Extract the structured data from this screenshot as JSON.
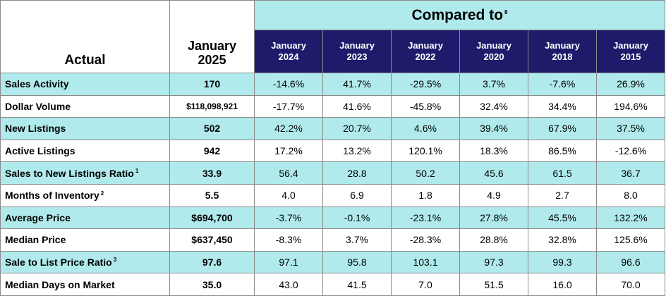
{
  "header": {
    "actual_label": "Actual",
    "current_period_line1": "January",
    "current_period_line2": "2025",
    "compared_label": "Compared to",
    "compared_footnote": "8",
    "comparison_periods": [
      {
        "line1": "January",
        "line2": "2024"
      },
      {
        "line1": "January",
        "line2": "2023"
      },
      {
        "line1": "January",
        "line2": "2022"
      },
      {
        "line1": "January",
        "line2": "2020"
      },
      {
        "line1": "January",
        "line2": "2018"
      },
      {
        "line1": "January",
        "line2": "2015"
      }
    ]
  },
  "rows": [
    {
      "label": "Sales Activity",
      "footnote": "",
      "current": "170",
      "values": [
        "-14.6%",
        "41.7%",
        "-29.5%",
        "3.7%",
        "-7.6%",
        "26.9%"
      ]
    },
    {
      "label": "Dollar Volume",
      "footnote": "",
      "current": "$118,098,921",
      "values": [
        "-17.7%",
        "41.6%",
        "-45.8%",
        "32.4%",
        "34.4%",
        "194.6%"
      ]
    },
    {
      "label": "New Listings",
      "footnote": "",
      "current": "502",
      "values": [
        "42.2%",
        "20.7%",
        "4.6%",
        "39.4%",
        "67.9%",
        "37.5%"
      ]
    },
    {
      "label": "Active Listings",
      "footnote": "",
      "current": "942",
      "values": [
        "17.2%",
        "13.2%",
        "120.1%",
        "18.3%",
        "86.5%",
        "-12.6%"
      ]
    },
    {
      "label": "Sales to New Listings Ratio",
      "footnote": "1",
      "current": "33.9",
      "values": [
        "56.4",
        "28.8",
        "50.2",
        "45.6",
        "61.5",
        "36.7"
      ]
    },
    {
      "label": "Months of Inventory",
      "footnote": "2",
      "current": "5.5",
      "values": [
        "4.0",
        "6.9",
        "1.8",
        "4.9",
        "2.7",
        "8.0"
      ]
    },
    {
      "label": "Average Price",
      "footnote": "",
      "current": "$694,700",
      "values": [
        "-3.7%",
        "-0.1%",
        "-23.1%",
        "27.8%",
        "45.5%",
        "132.2%"
      ]
    },
    {
      "label": "Median Price",
      "footnote": "",
      "current": "$637,450",
      "values": [
        "-8.3%",
        "3.7%",
        "-28.3%",
        "28.8%",
        "32.8%",
        "125.6%"
      ]
    },
    {
      "label": "Sale to List Price Ratio",
      "footnote": "3",
      "current": "97.6",
      "values": [
        "97.1",
        "95.8",
        "103.1",
        "97.3",
        "99.3",
        "96.6"
      ]
    },
    {
      "label": "Median Days on Market",
      "footnote": "",
      "current": "35.0",
      "values": [
        "43.0",
        "41.5",
        "7.0",
        "51.5",
        "16.0",
        "70.0"
      ]
    }
  ],
  "colors": {
    "highlight_row": "#b0eaec",
    "header_navy": "#1d1b6a",
    "border": "#8a8a8a"
  }
}
